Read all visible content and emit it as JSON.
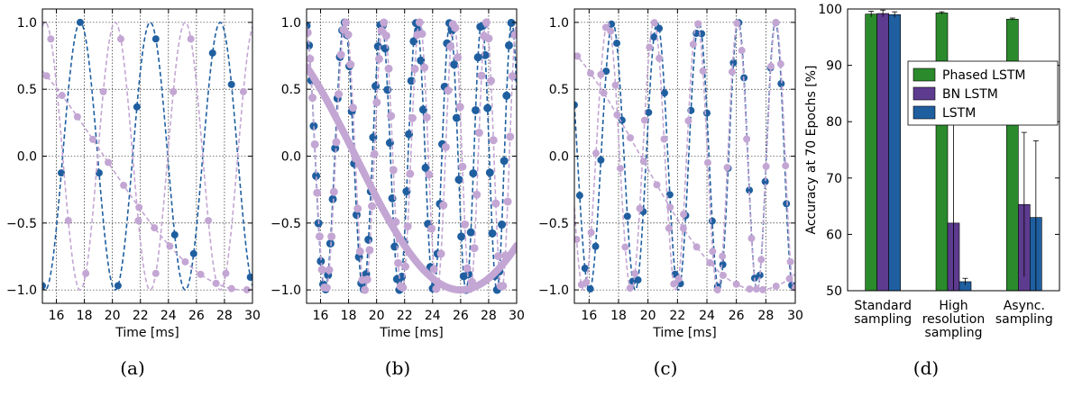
{
  "chart_data": [
    {
      "type": "line",
      "panel_label": "(a)",
      "xlabel": "Time [ms]",
      "xlim": [
        15,
        30
      ],
      "ylim": [
        -1.1,
        1.1
      ],
      "xticks": [
        16,
        18,
        20,
        22,
        24,
        26,
        28,
        30
      ],
      "yticks": [
        1.0,
        0.5,
        0.0,
        -0.5,
        -1.0
      ],
      "grid": true,
      "series": [
        {
          "color": "#1f5fa0",
          "kind": "sine",
          "period": 5,
          "phase_peak": 17.7,
          "sample_dt": 1.35,
          "sample_offset": 0.0,
          "sample_marker_size": 4
        },
        {
          "color": "#c3a6d3",
          "kind": "sine",
          "period": 5,
          "phase_peak": 20.2,
          "sample_dt": 1.25,
          "sample_offset": 0.6,
          "sample_marker_size": 4
        },
        {
          "color": "#c3a6d3",
          "kind": "slow",
          "period": 40,
          "phase_peak": 9.4,
          "sample_dt": 1.1,
          "sample_offset": 0.3,
          "sample_marker_size": 4
        }
      ]
    },
    {
      "type": "line",
      "panel_label": "(b)",
      "xlabel": "Time [ms]",
      "xlim": [
        15,
        30
      ],
      "ylim": [
        -1.1,
        1.1
      ],
      "xticks": [
        16,
        18,
        20,
        22,
        24,
        26,
        28,
        30
      ],
      "yticks": [
        1.0,
        0.5,
        0.0,
        -0.5,
        -1.0
      ],
      "grid": true,
      "series": [
        {
          "color": "#1f5fa0",
          "kind": "chirp",
          "period": 2.8,
          "phase_peak": 17.7,
          "sample_dt": 0.17,
          "sample_offset": 0.0,
          "sample_marker_size": 4.5
        },
        {
          "color": "#c3a6d3",
          "kind": "chirp",
          "period": 2.8,
          "phase_peak": 20.5,
          "sample_dt": 0.17,
          "sample_offset": 0.08,
          "sample_marker_size": 4.5
        },
        {
          "color": "#c3a6d3",
          "kind": "slow_thick",
          "period": 30,
          "phase_peak": 11.0,
          "sample_dt": 0,
          "sample_offset": 0,
          "sample_marker_size": 0
        }
      ]
    },
    {
      "type": "line",
      "panel_label": "(c)",
      "xlabel": "Time [ms]",
      "xlim": [
        15,
        30
      ],
      "ylim": [
        -1.1,
        1.1
      ],
      "xticks": [
        16,
        18,
        20,
        22,
        24,
        26,
        28,
        30
      ],
      "yticks": [
        1.0,
        0.5,
        0.0,
        -0.5,
        -1.0
      ],
      "grid": true,
      "series": [
        {
          "color": "#1f5fa0",
          "kind": "chirp",
          "period": 3.2,
          "phase_peak": 17.6,
          "sample_dt": 0.36,
          "sample_offset": 0.0,
          "sample_marker_size": 4
        },
        {
          "color": "#c3a6d3",
          "kind": "chirp",
          "period": 3.2,
          "phase_peak": 20.4,
          "sample_dt": 0.33,
          "sample_offset": 0.15,
          "sample_marker_size": 4
        },
        {
          "color": "#c3a6d3",
          "kind": "slow",
          "period": 32,
          "phase_peak": 11.5,
          "sample_dt": 0.9,
          "sample_offset": 0.2,
          "sample_marker_size": 4
        }
      ]
    },
    {
      "type": "bar",
      "panel_label": "(d)",
      "ylabel": "Accuracy at 70 Epochs [%]",
      "ylim": [
        50,
        100
      ],
      "yticks": [
        50,
        60,
        70,
        80,
        90,
        100
      ],
      "grid": false,
      "categories": [
        [
          "Standard",
          "sampling"
        ],
        [
          "High",
          "resolution",
          "sampling"
        ],
        [
          "Async.",
          "sampling"
        ]
      ],
      "legend_position": "upper-right",
      "series": [
        {
          "name": "Phased LSTM",
          "color": "#2b8a2b",
          "values": [
            99.1,
            99.3,
            98.2
          ],
          "errors": [
            0.5,
            0.2,
            0.2
          ]
        },
        {
          "name": "BN LSTM",
          "color": "#5d3b8f",
          "values": [
            99.2,
            62.0,
            65.3
          ],
          "errors": [
            0.6,
            18.0,
            12.8
          ]
        },
        {
          "name": "LSTM",
          "color": "#1f5fa0",
          "values": [
            99.0,
            51.6,
            63.0
          ],
          "errors": [
            0.5,
            0.6,
            13.6
          ]
        }
      ]
    }
  ]
}
